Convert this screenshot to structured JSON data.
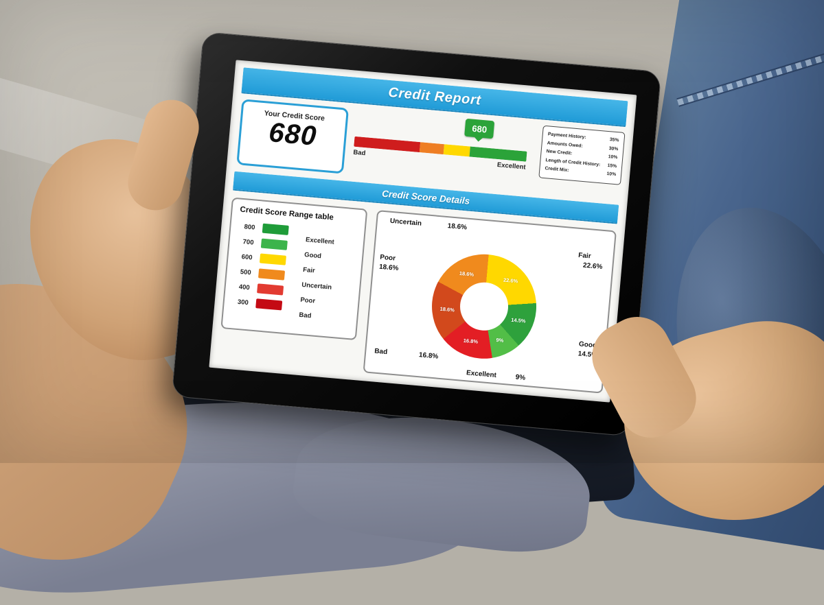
{
  "header": {
    "title": "Credit Report"
  },
  "score_box": {
    "label": "Your Credit Score",
    "value": "680"
  },
  "gauge": {
    "marker_value": "680",
    "marker_color": "#2ba339",
    "marker_pos_pct": 69,
    "min_label": "Bad",
    "max_label": "Excellent",
    "segments": [
      {
        "name": "bad",
        "color": "#cf1d1d",
        "width_pct": 38
      },
      {
        "name": "uncertain",
        "color": "#ee7e23",
        "width_pct": 14
      },
      {
        "name": "fair",
        "color": "#ffd800",
        "width_pct": 15
      },
      {
        "name": "good",
        "color": "#2ba339",
        "width_pct": 33
      }
    ]
  },
  "factors": {
    "items": [
      {
        "label": "Payment History:",
        "value": "35%"
      },
      {
        "label": "Amounts Owed:",
        "value": "30%"
      },
      {
        "label": "New Credit:",
        "value": "10%"
      },
      {
        "label": "Length of Credit History:",
        "value": "15%"
      },
      {
        "label": "Credit Mix:",
        "value": "10%"
      }
    ]
  },
  "details_header": {
    "title": "Credit Score Details"
  },
  "range_table": {
    "title": "Credit Score Range table",
    "rows": [
      {
        "score": "800",
        "color": "#1f9c39",
        "label": "Excellent"
      },
      {
        "score": "700",
        "color": "#3cb44b",
        "label": "Good"
      },
      {
        "score": "600",
        "color": "#ffd800",
        "label": "Fair"
      },
      {
        "score": "500",
        "color": "#f08a1d",
        "label": "Uncertain"
      },
      {
        "score": "400",
        "color": "#e23b31",
        "label": "Poor"
      },
      {
        "score": "300",
        "color": "#c40a14",
        "label": "Bad"
      }
    ]
  },
  "chart_data": {
    "type": "pie",
    "donut": true,
    "title": "Credit Score Details",
    "categories": [
      "Fair",
      "Good",
      "Excellent",
      "Bad",
      "Poor",
      "Uncertain"
    ],
    "values": [
      22.6,
      14.5,
      9,
      16.8,
      18.6,
      18.6
    ],
    "labels": [
      "22.6%",
      "14.5%",
      "9%",
      "16.8%",
      "18.6%",
      "18.6%"
    ],
    "colors": [
      "#ffd800",
      "#2ea13c",
      "#52be47",
      "#e31e24",
      "#d2491c",
      "#f08a1d"
    ],
    "legend_position": "around",
    "start_angle_deg": 0
  }
}
